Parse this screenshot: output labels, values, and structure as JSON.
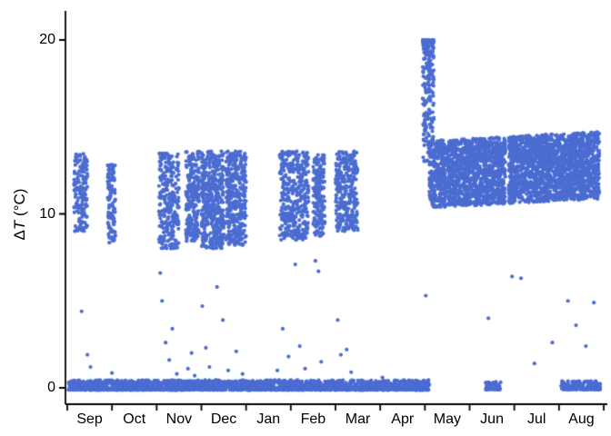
{
  "chart_data": {
    "type": "scatter",
    "title": "",
    "xlabel": "",
    "ylabel": {
      "prefix": "Δ",
      "italic": "T",
      "suffix": " (°C)"
    },
    "x_tick_labels": [
      "Sep",
      "Oct",
      "Nov",
      "Dec",
      "Jan",
      "Feb",
      "Mar",
      "Apr",
      "May",
      "Jun",
      "Jul",
      "Aug"
    ],
    "y_ticks": [
      0,
      10,
      20
    ],
    "x_range_months": [
      0,
      12
    ],
    "y_range": [
      -0.6,
      21
    ],
    "grid": false,
    "legend": false,
    "point_color": "#4b6cd1",
    "point_radius": 2.1,
    "axis_color": "#000000",
    "seed": 42,
    "clusters": [
      {
        "name": "baseline-sep-apr",
        "x": [
          0.02,
          8.1
        ],
        "y": [
          -0.12,
          0.45
        ],
        "n": 2300,
        "bias": "low"
      },
      {
        "name": "baseline-jun",
        "x": [
          9.35,
          9.7
        ],
        "y": [
          -0.1,
          0.35
        ],
        "n": 60,
        "bias": "low"
      },
      {
        "name": "baseline-aug",
        "x": [
          11.05,
          11.92
        ],
        "y": [
          -0.1,
          0.4
        ],
        "n": 170,
        "bias": "low"
      },
      {
        "name": "stripe-sep-a",
        "x": [
          0.15,
          0.45
        ],
        "y": [
          9.0,
          13.5
        ],
        "n": 160
      },
      {
        "name": "stripe-sep-b",
        "x": [
          0.9,
          1.08
        ],
        "y": [
          8.3,
          12.9
        ],
        "n": 110
      },
      {
        "name": "stripe-nov-a",
        "x": [
          2.05,
          2.5
        ],
        "y": [
          8.0,
          13.5
        ],
        "n": 260
      },
      {
        "name": "stripe-nov-b",
        "x": [
          2.65,
          2.95
        ],
        "y": [
          8.4,
          13.6
        ],
        "n": 230
      },
      {
        "name": "stripe-dec-a",
        "x": [
          3.0,
          3.5
        ],
        "y": [
          8.0,
          13.6
        ],
        "n": 460
      },
      {
        "name": "stripe-dec-b",
        "x": [
          3.55,
          4.0
        ],
        "y": [
          8.2,
          13.6
        ],
        "n": 360
      },
      {
        "name": "stripe-jan-feb",
        "x": [
          4.75,
          5.4
        ],
        "y": [
          8.5,
          13.6
        ],
        "n": 400
      },
      {
        "name": "stripe-feb",
        "x": [
          5.5,
          5.76
        ],
        "y": [
          8.7,
          13.4
        ],
        "n": 190
      },
      {
        "name": "stripe-mar",
        "x": [
          6.0,
          6.5
        ],
        "y": [
          9.0,
          13.6
        ],
        "n": 300
      },
      {
        "name": "spike-may",
        "x": [
          7.95,
          8.2
        ],
        "y": [
          13.0,
          20.0
        ],
        "n": 230,
        "bias": "high"
      },
      {
        "name": "band-may-jul",
        "x": [
          8.1,
          9.8
        ],
        "y": [
          10.35,
          14.2
        ],
        "n": 1500,
        "trend": 0.13
      },
      {
        "name": "band-jul-aug",
        "x": [
          9.87,
          11.9
        ],
        "y": [
          10.6,
          14.45
        ],
        "n": 1800,
        "trend": 0.13
      }
    ],
    "outliers": [
      [
        0.32,
        4.4
      ],
      [
        0.45,
        1.9
      ],
      [
        0.52,
        1.2
      ],
      [
        1.0,
        0.85
      ],
      [
        2.08,
        6.6
      ],
      [
        2.12,
        5.0
      ],
      [
        2.2,
        2.6
      ],
      [
        2.28,
        1.6
      ],
      [
        2.35,
        3.4
      ],
      [
        2.45,
        0.8
      ],
      [
        2.7,
        1.1
      ],
      [
        2.78,
        2.0
      ],
      [
        2.85,
        0.7
      ],
      [
        3.02,
        4.7
      ],
      [
        3.1,
        2.3
      ],
      [
        3.18,
        1.2
      ],
      [
        3.35,
        5.8
      ],
      [
        3.48,
        3.9
      ],
      [
        3.6,
        1.0
      ],
      [
        3.78,
        2.1
      ],
      [
        3.92,
        0.8
      ],
      [
        4.7,
        1.0
      ],
      [
        4.82,
        3.4
      ],
      [
        4.95,
        1.8
      ],
      [
        5.1,
        7.1
      ],
      [
        5.2,
        2.4
      ],
      [
        5.32,
        1.1
      ],
      [
        5.55,
        7.3
      ],
      [
        5.62,
        6.7
      ],
      [
        5.68,
        1.5
      ],
      [
        6.05,
        3.9
      ],
      [
        6.12,
        1.9
      ],
      [
        6.25,
        2.2
      ],
      [
        6.35,
        0.9
      ],
      [
        7.05,
        0.6
      ],
      [
        8.02,
        5.3
      ],
      [
        9.42,
        4.0
      ],
      [
        9.95,
        6.4
      ],
      [
        10.15,
        6.3
      ],
      [
        10.45,
        1.4
      ],
      [
        10.85,
        2.6
      ],
      [
        11.2,
        5.0
      ],
      [
        11.38,
        3.6
      ],
      [
        11.6,
        2.4
      ],
      [
        11.78,
        4.9
      ]
    ]
  }
}
